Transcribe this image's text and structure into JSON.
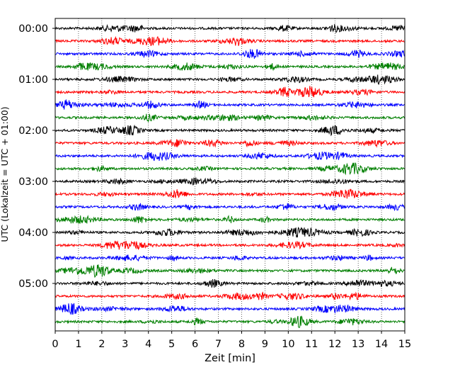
{
  "chart_data": {
    "type": "line",
    "title": "",
    "xlabel": "Zeit  [min]",
    "ylabel": "UTC (Lokalzeit = UTC + 01:00)",
    "xlim": [
      0,
      15
    ],
    "x_ticks": [
      "0",
      "1",
      "2",
      "3",
      "4",
      "5",
      "6",
      "7",
      "8",
      "9",
      "10",
      "11",
      "12",
      "13",
      "14",
      "15"
    ],
    "y_ticks": [
      {
        "label": "00:00",
        "trace": 0
      },
      {
        "label": "01:00",
        "trace": 4
      },
      {
        "label": "02:00",
        "trace": 8
      },
      {
        "label": "03:00",
        "trace": 12
      },
      {
        "label": "04:00",
        "trace": 16
      },
      {
        "label": "05:00",
        "trace": 20
      }
    ],
    "trace_count": 24,
    "minutes_per_trace": 15,
    "trace_colors": [
      "#000000",
      "#ff0000",
      "#0000ff",
      "#007f00"
    ],
    "grid": "vertical dotted",
    "legend": "none"
  }
}
